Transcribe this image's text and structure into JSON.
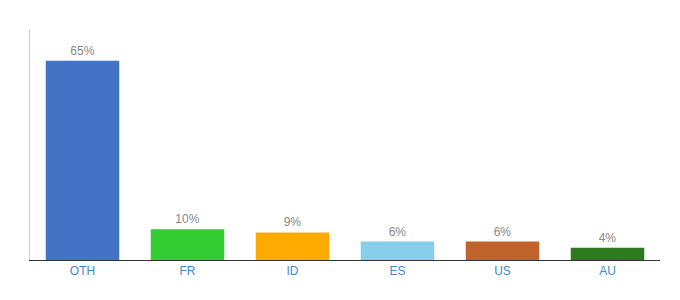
{
  "chart_data": {
    "type": "bar",
    "categories": [
      "OTH",
      "FR",
      "ID",
      "ES",
      "US",
      "AU"
    ],
    "values": [
      65,
      10,
      9,
      6,
      6,
      4
    ],
    "value_labels": [
      "65%",
      "10%",
      "9%",
      "6%",
      "6%",
      "4%"
    ],
    "colors": [
      "#4472c4",
      "#33cc33",
      "#ffaa00",
      "#87ceeb",
      "#c0622b",
      "#2d7a1f"
    ],
    "ylim": [
      0,
      75
    ],
    "grid": false,
    "data_labels": true,
    "tick_labels": "x"
  }
}
